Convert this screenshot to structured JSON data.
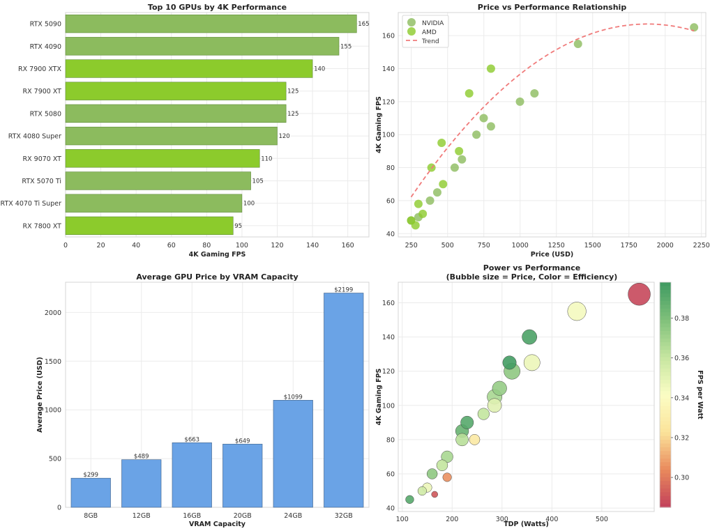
{
  "colors": {
    "nvidia": "#8cbb5e",
    "amd": "#8ccb2c",
    "vram_bar": "#6aa3e6",
    "trend": "#f07a7a",
    "grid": "#ebebeb",
    "cmap": [
      "#c2405b",
      "#e98a5c",
      "#fbe39a",
      "#fbfdc4",
      "#c6e6a0",
      "#7fc07a",
      "#3f9a62"
    ]
  },
  "chart_data": [
    {
      "id": "top10",
      "type": "bar",
      "orientation": "horizontal",
      "title": "Top 10 GPUs by 4K Performance",
      "xlabel": "4K Gaming FPS",
      "ylabel": "",
      "xlim": [
        0,
        172
      ],
      "xticks": [
        0,
        20,
        40,
        60,
        80,
        100,
        120,
        140,
        160
      ],
      "categories": [
        "RTX 5090",
        "RTX 4090",
        "RX 7900 XTX",
        "RX 7900 XT",
        "RTX 5080",
        "RTX 4080 Super",
        "RX 9070 XT",
        "RTX 5070 Ti",
        "RTX 4070 Ti Super",
        "RX 7800 XT"
      ],
      "values": [
        165,
        155,
        140,
        125,
        125,
        120,
        110,
        105,
        100,
        95
      ],
      "brands": [
        "NVIDIA",
        "NVIDIA",
        "AMD",
        "AMD",
        "NVIDIA",
        "NVIDIA",
        "AMD",
        "NVIDIA",
        "NVIDIA",
        "AMD"
      ],
      "grid": true
    },
    {
      "id": "price_perf",
      "type": "scatter",
      "title": "Price vs Performance Relationship",
      "xlabel": "Price (USD)",
      "ylabel": "4K Gaming FPS",
      "xlim": [
        160,
        2280
      ],
      "ylim": [
        38,
        174
      ],
      "xticks": [
        250,
        500,
        750,
        1000,
        1250,
        1500,
        1750,
        2000,
        2250
      ],
      "yticks": [
        40,
        60,
        80,
        100,
        120,
        140,
        160
      ],
      "legend": [
        "NVIDIA",
        "AMD",
        "Trend"
      ],
      "legend_position": "top-left",
      "series": [
        {
          "name": "NVIDIA",
          "points": [
            [
              2199,
              165
            ],
            [
              1399,
              155
            ],
            [
              1099,
              125
            ],
            [
              999,
              120
            ],
            [
              799,
              105
            ],
            [
              749,
              110
            ],
            [
              699,
              100
            ],
            [
              599,
              85
            ],
            [
              549,
              80
            ],
            [
              429,
              65
            ],
            [
              379,
              60
            ],
            [
              299,
              50
            ],
            [
              249,
              48
            ]
          ]
        },
        {
          "name": "AMD",
          "points": [
            [
              799,
              140
            ],
            [
              649,
              125
            ],
            [
              579,
              90
            ],
            [
              459,
              95
            ],
            [
              389,
              80
            ],
            [
              469,
              70
            ],
            [
              329,
              52
            ],
            [
              299,
              58
            ],
            [
              279,
              45
            ],
            [
              249,
              48
            ]
          ]
        }
      ],
      "trend": {
        "name": "Trend",
        "x_range": [
          249,
          2199
        ],
        "coefficients": [
          -3.96e-05,
          0.1486,
          27.65
        ]
      },
      "grid": true
    },
    {
      "id": "vram",
      "type": "bar",
      "title": "Average GPU Price by VRAM Capacity",
      "xlabel": "VRAM Capacity",
      "ylabel": "Average Price (USD)",
      "ylim": [
        0,
        2310
      ],
      "yticks": [
        0,
        500,
        1000,
        1500,
        2000
      ],
      "categories": [
        "8GB",
        "12GB",
        "16GB",
        "20GB",
        "24GB",
        "32GB"
      ],
      "values": [
        299,
        489,
        663,
        649,
        1099,
        2199
      ],
      "labels": [
        "$299",
        "$489",
        "$663",
        "$649",
        "$1099",
        "$2199"
      ],
      "grid": true
    },
    {
      "id": "power_perf",
      "type": "scatter",
      "title": "Power vs Performance",
      "subtitle": "(Bubble size = Price, Color = Efficiency)",
      "xlabel": "TDP (Watts)",
      "ylabel": "4K Gaming FPS",
      "colorbar_label": "FPS per Watt",
      "xlim": [
        92,
        605
      ],
      "ylim": [
        38,
        172
      ],
      "xticks": [
        100,
        200,
        300,
        400,
        500
      ],
      "yticks": [
        40,
        60,
        80,
        100,
        120,
        140,
        160
      ],
      "clim": [
        0.285,
        0.398
      ],
      "cticks": [
        0.3,
        0.32,
        0.34,
        0.36,
        0.38
      ],
      "points": [
        {
          "tdp": 575,
          "fps": 165,
          "price": 2199,
          "eff": 0.287
        },
        {
          "tdp": 450,
          "fps": 155,
          "price": 1399,
          "eff": 0.344
        },
        {
          "tdp": 355,
          "fps": 140,
          "price": 799,
          "eff": 0.394
        },
        {
          "tdp": 360,
          "fps": 125,
          "price": 999,
          "eff": 0.347
        },
        {
          "tdp": 315,
          "fps": 125,
          "price": 649,
          "eff": 0.397
        },
        {
          "tdp": 320,
          "fps": 120,
          "price": 999,
          "eff": 0.375
        },
        {
          "tdp": 295,
          "fps": 110,
          "price": 749,
          "eff": 0.373
        },
        {
          "tdp": 285,
          "fps": 105,
          "price": 799,
          "eff": 0.368
        },
        {
          "tdp": 285,
          "fps": 100,
          "price": 699,
          "eff": 0.351
        },
        {
          "tdp": 263,
          "fps": 95,
          "price": 459,
          "eff": 0.361
        },
        {
          "tdp": 230,
          "fps": 90,
          "price": 579,
          "eff": 0.391
        },
        {
          "tdp": 220,
          "fps": 85,
          "price": 599,
          "eff": 0.386
        },
        {
          "tdp": 220,
          "fps": 80,
          "price": 549,
          "eff": 0.364
        },
        {
          "tdp": 245,
          "fps": 80,
          "price": 389,
          "eff": 0.327
        },
        {
          "tdp": 190,
          "fps": 70,
          "price": 469,
          "eff": 0.368
        },
        {
          "tdp": 180,
          "fps": 65,
          "price": 429,
          "eff": 0.361
        },
        {
          "tdp": 160,
          "fps": 60,
          "price": 379,
          "eff": 0.375
        },
        {
          "tdp": 190,
          "fps": 58,
          "price": 299,
          "eff": 0.305
        },
        {
          "tdp": 150,
          "fps": 52,
          "price": 329,
          "eff": 0.347
        },
        {
          "tdp": 140,
          "fps": 50,
          "price": 299,
          "eff": 0.357
        },
        {
          "tdp": 165,
          "fps": 48,
          "price": 249,
          "eff": 0.291
        },
        {
          "tdp": 115,
          "fps": 45,
          "price": 279,
          "eff": 0.391
        }
      ],
      "grid": true
    }
  ]
}
